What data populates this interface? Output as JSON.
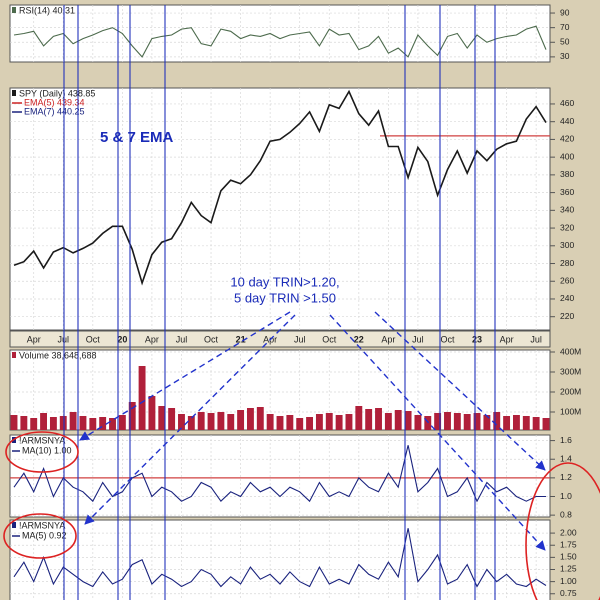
{
  "chart_data": [
    {
      "type": "line",
      "title": "RSI(14) 40.31",
      "color": "#4d6b4d",
      "values": [
        60,
        62,
        65,
        45,
        58,
        62,
        48,
        55,
        60,
        66,
        70,
        62,
        45,
        30,
        55,
        58,
        60,
        68,
        70,
        48,
        45,
        68,
        65,
        55,
        60,
        58,
        62,
        55,
        60,
        62,
        64,
        45,
        68,
        60,
        62,
        40,
        45,
        58,
        35,
        42,
        30,
        60,
        45,
        32,
        58,
        62,
        42,
        60,
        50,
        55,
        58,
        60,
        68,
        72,
        40
      ],
      "ylim": [
        23,
        101
      ],
      "yticks": [
        90,
        70,
        50,
        30
      ],
      "grid": true
    },
    {
      "type": "line",
      "title": "SPY (Daily) 438.85",
      "color": "#1a1a1a",
      "legend": [
        {
          "name": "EMA(5) 439.34",
          "color": "#cc2222"
        },
        {
          "name": "EMA(7) 440.25",
          "color": "#1a237e"
        }
      ],
      "annotation": "5 & 7 EMA",
      "reference_line": 424,
      "reference_color": "#d04040",
      "categories": [
        null,
        null,
        "Apr",
        null,
        null,
        "Jul",
        null,
        null,
        "Oct",
        null,
        null,
        "20",
        null,
        null,
        "Apr",
        null,
        null,
        "Jul",
        null,
        null,
        "Oct",
        null,
        null,
        "21",
        null,
        null,
        "Apr",
        null,
        null,
        "Jul",
        null,
        null,
        "Oct",
        null,
        null,
        "22",
        null,
        null,
        "Apr",
        null,
        null,
        "Jul",
        null,
        null,
        "Oct",
        null,
        null,
        "23",
        null,
        null,
        "Apr",
        null,
        null,
        "Jul",
        null
      ],
      "values": [
        278,
        282,
        294,
        275,
        293,
        298,
        292,
        297,
        303,
        314,
        322,
        322,
        296,
        258,
        290,
        304,
        308,
        326,
        349,
        334,
        326,
        362,
        374,
        370,
        380,
        396,
        418,
        420,
        428,
        438,
        451,
        429,
        459,
        455,
        474,
        449,
        436,
        452,
        412,
        412,
        377,
        411,
        395,
        357,
        386,
        407,
        382,
        407,
        396,
        409,
        415,
        418,
        443,
        457,
        439
      ],
      "ylim": [
        205,
        478
      ],
      "yticks": [
        460,
        440,
        420,
        400,
        380,
        360,
        340,
        320,
        300,
        280,
        260,
        240,
        220
      ],
      "grid": true
    },
    {
      "type": "bar",
      "title": "Volume 38,648,688",
      "color": "#b0203a",
      "values": [
        85,
        80,
        70,
        95,
        75,
        80,
        100,
        80,
        70,
        75,
        70,
        85,
        150,
        330,
        180,
        130,
        120,
        90,
        80,
        100,
        95,
        100,
        90,
        110,
        120,
        125,
        90,
        80,
        85,
        70,
        75,
        90,
        95,
        85,
        90,
        130,
        115,
        120,
        95,
        110,
        105,
        85,
        80,
        95,
        100,
        95,
        90,
        95,
        85,
        100,
        80,
        85,
        80,
        75,
        70
      ],
      "ylim": [
        10,
        410
      ],
      "yticks": [
        {
          "value": 400,
          "label": "400M"
        },
        {
          "value": 300,
          "label": "300M"
        },
        {
          "value": 200,
          "label": "200M"
        },
        {
          "value": 100,
          "label": "100M"
        }
      ],
      "grid": true
    },
    {
      "type": "line",
      "title": "!ARMSNYA",
      "subtitle": "MA(10) 1.00",
      "color": "#1a237e",
      "reference_line": 1.2,
      "reference_color": "#d04040",
      "values": [
        1.1,
        1.25,
        1.05,
        1.3,
        1.0,
        1.2,
        1.1,
        1.05,
        0.95,
        1.15,
        1.0,
        1.05,
        1.2,
        1.25,
        1.0,
        1.1,
        1.05,
        0.95,
        1.0,
        1.15,
        1.1,
        0.95,
        1.05,
        1.0,
        1.15,
        1.05,
        1.1,
        1.0,
        1.1,
        1.05,
        0.95,
        1.15,
        1.0,
        1.05,
        1.0,
        1.2,
        1.1,
        1.05,
        1.25,
        1.1,
        1.55,
        1.05,
        1.15,
        1.3,
        1.0,
        1.05,
        1.2,
        0.95,
        1.15,
        1.05,
        1.1,
        1.0,
        0.95,
        1.0,
        1.0
      ],
      "ylim": [
        0.78,
        1.66
      ],
      "yticks": [
        1.6,
        1.4,
        1.2,
        {
          "value": 1,
          "label": "1.0"
        },
        0.8
      ],
      "grid": true
    },
    {
      "type": "line",
      "title": "!ARMSNYA",
      "subtitle": "MA(5) 0.92",
      "color": "#1a237e",
      "values": [
        1.1,
        1.4,
        1.0,
        1.5,
        0.95,
        1.3,
        1.15,
        1.0,
        0.9,
        1.2,
        0.95,
        1.05,
        1.35,
        1.45,
        0.95,
        1.15,
        1.05,
        0.9,
        1.0,
        1.25,
        1.15,
        0.9,
        1.1,
        0.95,
        1.3,
        1.05,
        1.15,
        0.95,
        1.2,
        1.0,
        0.9,
        1.3,
        0.95,
        1.05,
        0.95,
        1.35,
        1.15,
        1.05,
        1.4,
        1.1,
        2.1,
        1.0,
        1.25,
        1.55,
        0.95,
        1.05,
        1.35,
        0.9,
        1.25,
        1.0,
        1.15,
        0.95,
        0.9,
        1.05,
        0.92
      ],
      "ylim": [
        0.58,
        2.27
      ],
      "yticks": [
        {
          "value": 2,
          "label": "2.00"
        },
        {
          "value": 1.75,
          "label": "1.75"
        },
        {
          "value": 1.5,
          "label": "1.50"
        },
        {
          "value": 1.25,
          "label": "1.25"
        },
        {
          "value": 1,
          "label": "1.00"
        },
        {
          "value": 0.75,
          "label": "0.75"
        }
      ],
      "grid": true
    }
  ],
  "annotations": [
    "10 day TRIN>1.20,",
    "5 day TRIN >1.50"
  ]
}
